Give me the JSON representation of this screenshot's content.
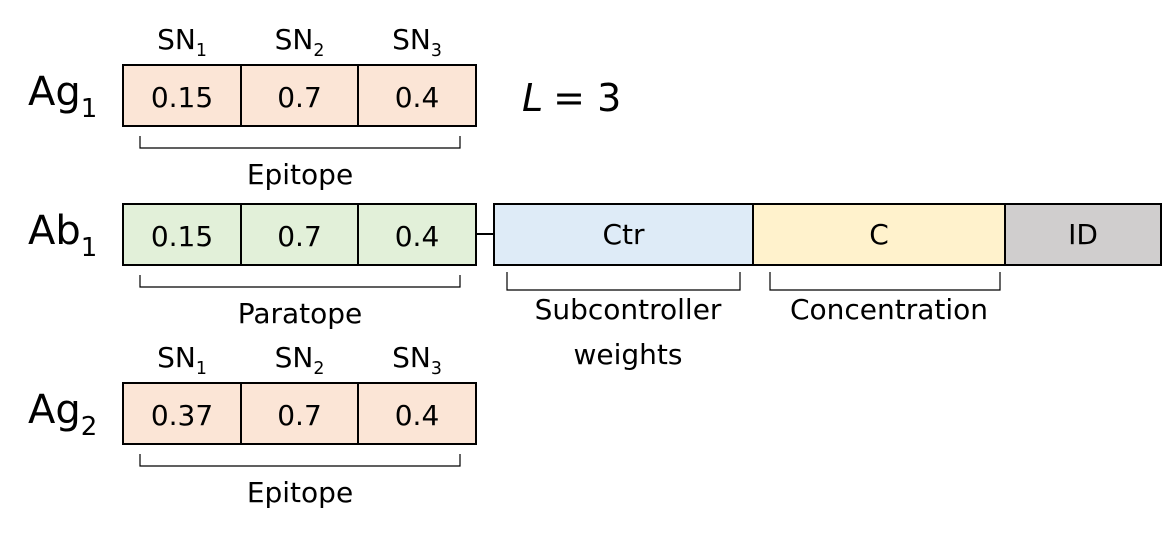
{
  "antigen_1": {
    "label": {
      "base": "Ag",
      "sub": "1"
    },
    "headers": [
      {
        "base": "SN",
        "sub": "1"
      },
      {
        "base": "SN",
        "sub": "2"
      },
      {
        "base": "SN",
        "sub": "3"
      }
    ],
    "cells": [
      0.15,
      0.7,
      0.4
    ],
    "bracket": "Epitope"
  },
  "length": {
    "variable": "L",
    "text": "= 3"
  },
  "antibody_1": {
    "label": {
      "base": "Ab",
      "sub": "1"
    },
    "cells": [
      0.15,
      0.7,
      0.4
    ],
    "bracket": "Paratope",
    "segments": [
      "Ctr",
      "C",
      "ID"
    ],
    "subcontroller_bracket": [
      "Subcontroller",
      "weights"
    ],
    "concentration_bracket": "Concentration"
  },
  "antigen_2": {
    "label": {
      "base": "Ag",
      "sub": "2"
    },
    "headers": [
      {
        "base": "SN",
        "sub": "1"
      },
      {
        "base": "SN",
        "sub": "2"
      },
      {
        "base": "SN",
        "sub": "3"
      }
    ],
    "cells": [
      0.37,
      0.7,
      0.4
    ],
    "bracket": "Epitope"
  }
}
